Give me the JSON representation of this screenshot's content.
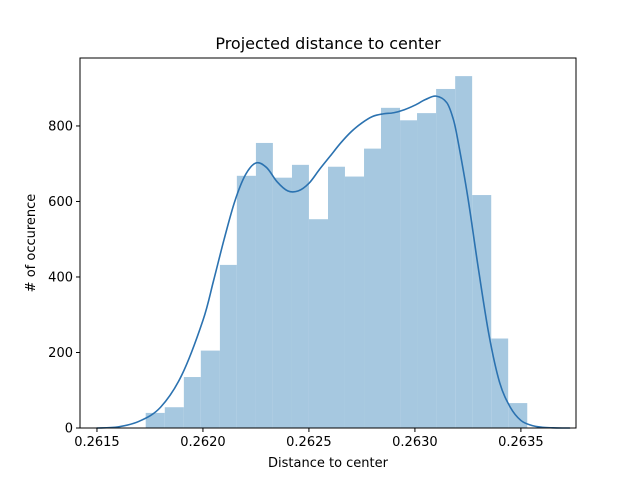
{
  "chart_data": {
    "type": "histogram",
    "title": "Projected distance to center",
    "xlabel": "Distance to center",
    "ylabel": "# of occurence",
    "xlim": [
      0.26142,
      0.26376
    ],
    "ylim": [
      0,
      980
    ],
    "xticks": [
      {
        "value": 0.2615,
        "label": "0.2615"
      },
      {
        "value": 0.262,
        "label": "0.2620"
      },
      {
        "value": 0.2625,
        "label": "0.2625"
      },
      {
        "value": 0.263,
        "label": "0.2630"
      },
      {
        "value": 0.2635,
        "label": "0.2635"
      }
    ],
    "yticks": [
      {
        "value": 0,
        "label": "0"
      },
      {
        "value": 200,
        "label": "200"
      },
      {
        "value": 400,
        "label": "400"
      },
      {
        "value": 600,
        "label": "600"
      },
      {
        "value": 800,
        "label": "800"
      }
    ],
    "bar_color": "#a6c8e0",
    "line_color": "#2b72b0",
    "bins": [
      {
        "x0": 0.26173,
        "x1": 0.26182,
        "count": 40
      },
      {
        "x0": 0.26182,
        "x1": 0.26191,
        "count": 55
      },
      {
        "x0": 0.26191,
        "x1": 0.26199,
        "count": 135
      },
      {
        "x0": 0.26199,
        "x1": 0.26208,
        "count": 205
      },
      {
        "x0": 0.26208,
        "x1": 0.26216,
        "count": 432
      },
      {
        "x0": 0.26216,
        "x1": 0.26225,
        "count": 668
      },
      {
        "x0": 0.26225,
        "x1": 0.26233,
        "count": 755
      },
      {
        "x0": 0.26233,
        "x1": 0.26242,
        "count": 663
      },
      {
        "x0": 0.26242,
        "x1": 0.2625,
        "count": 697
      },
      {
        "x0": 0.2625,
        "x1": 0.26259,
        "count": 553
      },
      {
        "x0": 0.26259,
        "x1": 0.26267,
        "count": 692
      },
      {
        "x0": 0.26267,
        "x1": 0.26276,
        "count": 666
      },
      {
        "x0": 0.26276,
        "x1": 0.26284,
        "count": 740
      },
      {
        "x0": 0.26284,
        "x1": 0.26293,
        "count": 848
      },
      {
        "x0": 0.26293,
        "x1": 0.26301,
        "count": 815
      },
      {
        "x0": 0.26301,
        "x1": 0.2631,
        "count": 834
      },
      {
        "x0": 0.2631,
        "x1": 0.26319,
        "count": 898
      },
      {
        "x0": 0.26319,
        "x1": 0.26327,
        "count": 932
      },
      {
        "x0": 0.26327,
        "x1": 0.26336,
        "count": 617
      },
      {
        "x0": 0.26336,
        "x1": 0.26344,
        "count": 237
      },
      {
        "x0": 0.26344,
        "x1": 0.26353,
        "count": 66
      }
    ],
    "kde": {
      "x": [
        0.2615,
        0.2616,
        0.2617,
        0.2618,
        0.2619,
        0.262,
        0.26205,
        0.2621,
        0.26215,
        0.2622,
        0.26225,
        0.2623,
        0.26235,
        0.2624,
        0.26245,
        0.2625,
        0.26255,
        0.2626,
        0.26265,
        0.2627,
        0.26275,
        0.2628,
        0.26285,
        0.2629,
        0.26295,
        0.263,
        0.26305,
        0.2631,
        0.26315,
        0.26318,
        0.2632,
        0.26325,
        0.2633,
        0.26335,
        0.2634,
        0.26345,
        0.2635,
        0.26355,
        0.2636,
        0.26365,
        0.2637,
        0.26373
      ],
      "y": [
        0,
        3,
        18,
        55,
        140,
        285,
        390,
        500,
        600,
        670,
        702,
        690,
        652,
        628,
        628,
        648,
        685,
        720,
        755,
        785,
        808,
        825,
        832,
        835,
        843,
        855,
        870,
        879,
        862,
        820,
        770,
        610,
        420,
        245,
        120,
        55,
        20,
        7,
        2,
        0.5,
        0,
        0
      ]
    }
  }
}
